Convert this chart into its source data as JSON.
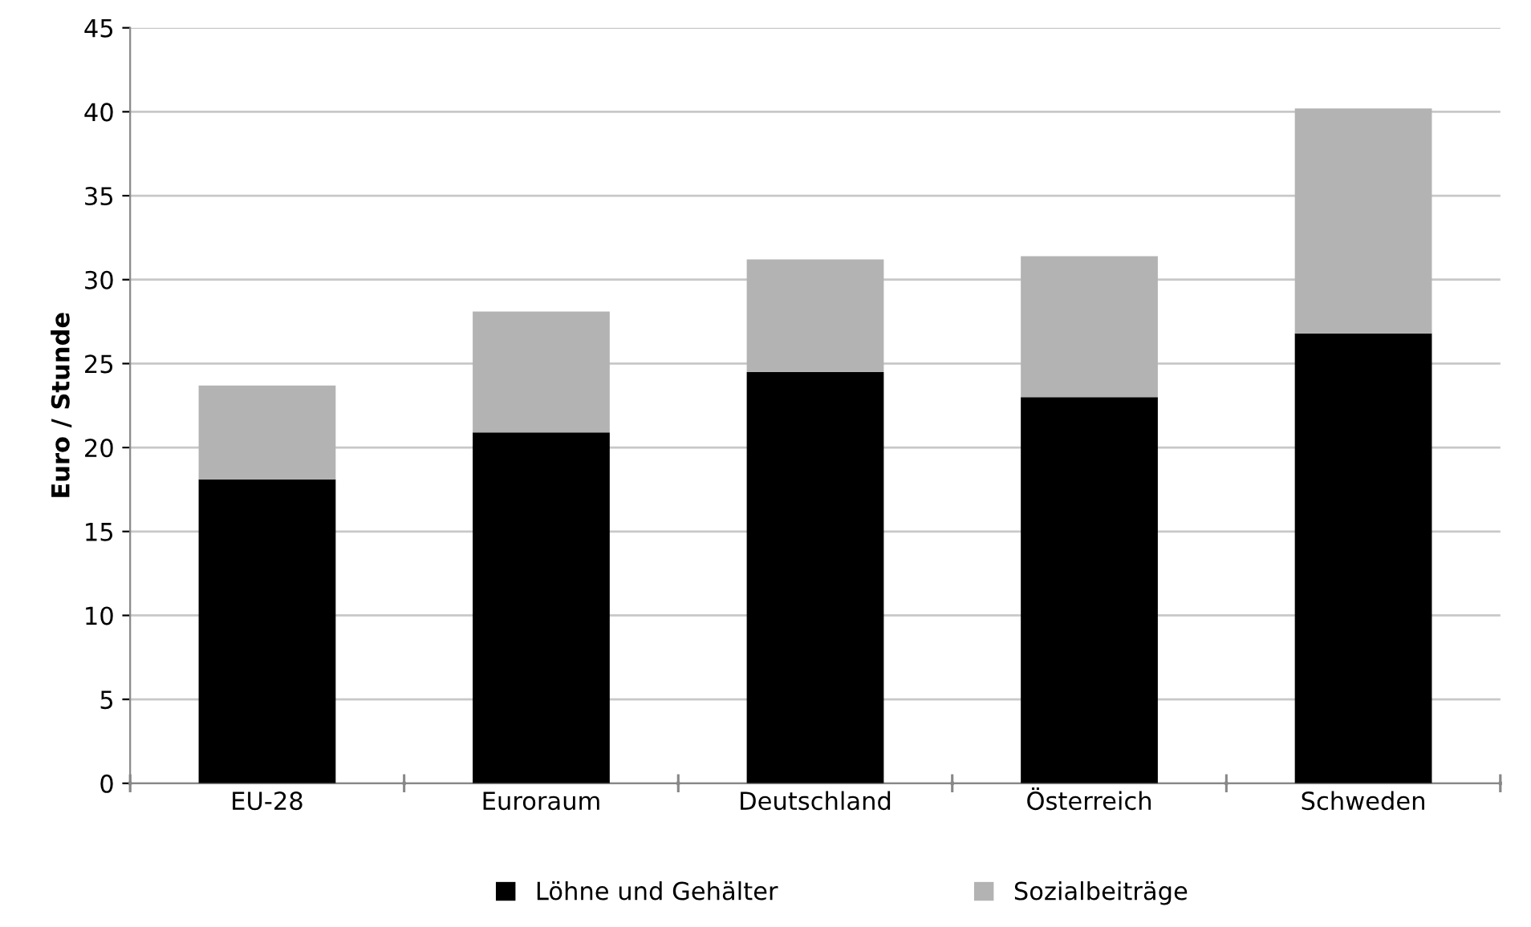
{
  "chart_data": {
    "type": "bar",
    "ylabel": "Euro / Stunde",
    "categories": [
      "EU-28",
      "Euroraum",
      "Deutschland",
      "Österreich",
      "Schweden"
    ],
    "stacked": true,
    "series": [
      {
        "name": "Löhne und Gehälter",
        "color": "#000000",
        "values": [
          18.1,
          20.9,
          24.5,
          23.0,
          26.8
        ]
      },
      {
        "name": "Sozialbeiträge",
        "color": "#b3b3b3",
        "values": [
          5.6,
          7.2,
          6.7,
          8.4,
          13.4
        ]
      }
    ],
    "ylim": [
      0,
      45
    ],
    "yticks": [
      0,
      5,
      10,
      15,
      20,
      25,
      30,
      35,
      40,
      45
    ],
    "grid": "y",
    "legend": "bottom"
  }
}
